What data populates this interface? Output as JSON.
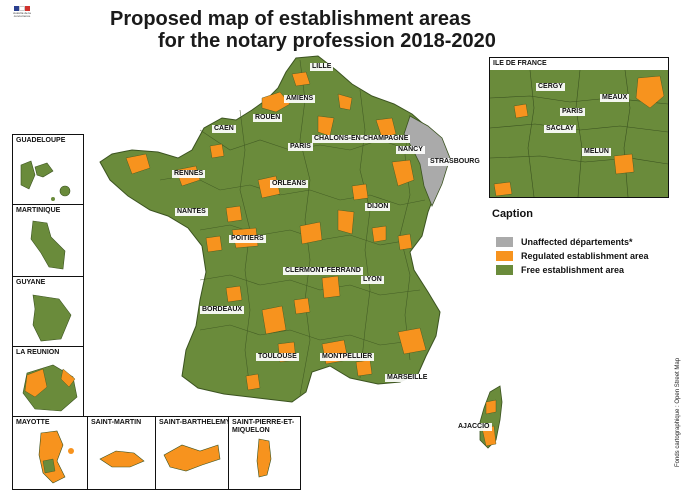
{
  "title": {
    "line1": "Proposed map of establishment areas",
    "line2": "for the notary profession 2018-2020"
  },
  "logo": {
    "text": "Autorité de la concurrence"
  },
  "colors": {
    "free": "#6a8b3b",
    "regulated": "#f7931e",
    "unaffected": "#aaaaaa",
    "border": "#3b5320"
  },
  "cities": {
    "lille": "LILLE",
    "amiens": "AMIENS",
    "rouen": "ROUEN",
    "caen": "CAEN",
    "paris": "PARIS",
    "chalons": "CHALONS-EN-CHAMPAGNE",
    "nancy": "NANCY",
    "strasbourg": "STRASBOURG",
    "rennes": "RENNES",
    "orleans": "ORLEANS",
    "nantes": "NANTES",
    "dijon": "DIJON",
    "poitiers": "POITIERS",
    "clermont": "CLERMONT-FERRAND",
    "lyon": "LYON",
    "bordeaux": "BORDEAUX",
    "toulouse": "TOULOUSE",
    "montpellier": "MONTPELLIER",
    "marseille": "MARSEILLE",
    "ajaccio": "AJACCIO"
  },
  "idf": {
    "title": "ILE DE FRANCE",
    "cergy": "CERGY",
    "meaux": "MEAUX",
    "paris": "PARIS",
    "saclay": "SACLAY",
    "melun": "MELUN"
  },
  "insets": {
    "guadeloupe": "GUADELOUPE",
    "martinique": "MARTINIQUE",
    "guyane": "GUYANE",
    "reunion": "LA REUNION",
    "mayotte": "MAYOTTE",
    "saint_martin": "SAINT-MARTIN",
    "saint_barthelemy": "SAINT-BARTHELEMY",
    "saint_pierre": "SAINT-PIERRE-ET-MIQUELON"
  },
  "legend": {
    "title": "Caption",
    "items": [
      {
        "label": "Unaffected départements*",
        "color": "#aaaaaa"
      },
      {
        "label": "Regulated establishment area",
        "color": "#f7931e"
      },
      {
        "label": "Free establishment area",
        "color": "#6a8b3b"
      }
    ]
  },
  "source": "Fonds cartographique : Open Street Map"
}
